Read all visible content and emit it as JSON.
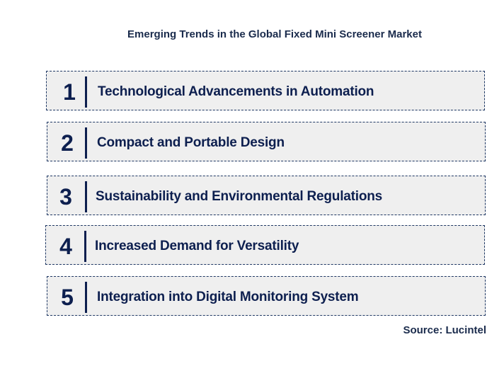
{
  "title": "Emerging Trends in the Global Fixed Mini Screener Market",
  "trends": [
    {
      "number": "1",
      "label": "Technological Advancements in Automation"
    },
    {
      "number": "2",
      "label": "Compact and Portable Design"
    },
    {
      "number": "3",
      "label": "Sustainability and Environmental Regulations"
    },
    {
      "number": "4",
      "label": "Increased Demand for Versatility"
    },
    {
      "number": "5",
      "label": "Integration into Digital Monitoring System"
    }
  ],
  "source": "Source: Lucintel",
  "colors": {
    "text": "#0d1f4f",
    "box_fill": "#efefef",
    "box_border": "#1f3864"
  }
}
